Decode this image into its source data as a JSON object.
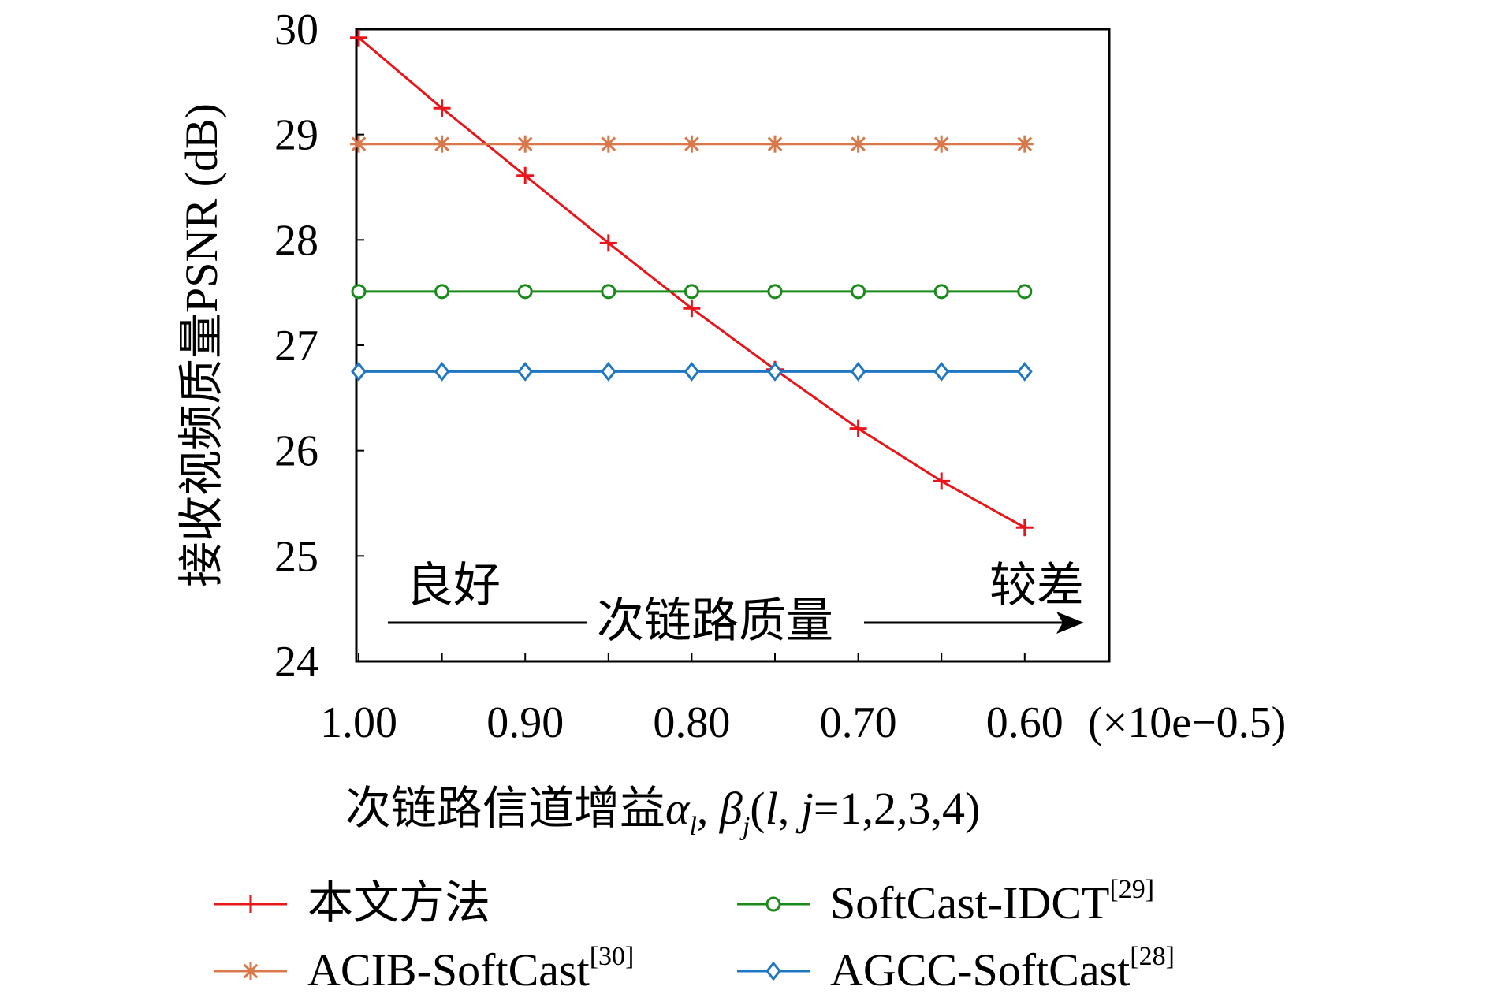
{
  "chart_data": {
    "type": "line",
    "title": "",
    "xlabel": "次链路信道增益α_l, β_j(l, j=1,2,3,4)",
    "xlabel_main": "次链路信道增益",
    "xlabel_math": "α",
    "xlabel_sub_l": "l",
    "xlabel_sep": ", ",
    "xlabel_beta": "β",
    "xlabel_sub_j": "j",
    "xlabel_tail_open": "(",
    "xlabel_l": "l",
    "xlabel_comma": ", ",
    "xlabel_j": "j",
    "xlabel_tail": "=1,2,3,4)",
    "ylabel": "接收视频质量PSNR (dB)",
    "x": [
      1.0,
      0.95,
      0.9,
      0.85,
      0.8,
      0.75,
      0.7,
      0.65,
      0.6
    ],
    "xticks": [
      "1.00",
      "0.90",
      "0.80",
      "0.70",
      "0.60"
    ],
    "xtick_values": [
      1.0,
      0.9,
      0.8,
      0.7,
      0.6
    ],
    "x_unit": "(×10e−0.5)",
    "xlim": [
      1.0,
      0.55
    ],
    "ylim": [
      24,
      30
    ],
    "yticks": [
      "24",
      "25",
      "26",
      "27",
      "28",
      "29",
      "30"
    ],
    "ytick_values": [
      24,
      25,
      26,
      27,
      28,
      29,
      30
    ],
    "grid": false,
    "legend_position": "bottom",
    "annotations": {
      "good": "良好",
      "poor": "较差",
      "arrow_label": "次链路质量"
    },
    "series": [
      {
        "name": "本文方法",
        "sup": "",
        "color": "#e8161b",
        "marker": "plus",
        "values": [
          29.92,
          29.25,
          28.61,
          27.97,
          27.35,
          26.77,
          26.21,
          25.71,
          25.27
        ]
      },
      {
        "name": "ACIB-SoftCast",
        "sup": "[30]",
        "color": "#d9794b",
        "marker": "asterisk",
        "values": [
          28.91,
          28.91,
          28.91,
          28.91,
          28.91,
          28.91,
          28.91,
          28.91,
          28.91
        ]
      },
      {
        "name": "SoftCast-IDCT",
        "sup": "[29]",
        "color": "#1a8a1a",
        "marker": "circle",
        "values": [
          27.51,
          27.51,
          27.51,
          27.51,
          27.51,
          27.51,
          27.51,
          27.51,
          27.51
        ]
      },
      {
        "name": "AGCC-SoftCast",
        "sup": "[28]",
        "color": "#1f77c4",
        "marker": "diamond",
        "values": [
          26.75,
          26.75,
          26.75,
          26.75,
          26.75,
          26.75,
          26.75,
          26.75,
          26.75
        ]
      }
    ]
  }
}
